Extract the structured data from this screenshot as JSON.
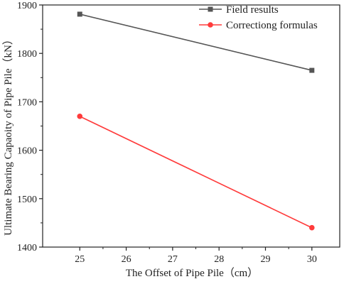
{
  "chart_data": {
    "type": "line",
    "title": "",
    "xlabel": "The Offset of Pipe Pile（cm）",
    "ylabel": "Ultimate Bearing Capaoity of Pipe Pile（kN）",
    "xlim": [
      24.2,
      30.6
    ],
    "ylim": [
      1400,
      1900
    ],
    "xticks": [
      25,
      26,
      27,
      28,
      29,
      30
    ],
    "yticks": [
      1400,
      1500,
      1600,
      1700,
      1800,
      1900
    ],
    "grid": false,
    "legend": "top-right",
    "series": [
      {
        "name": "Field results",
        "color": "#555555",
        "marker": "square",
        "x": [
          25,
          30
        ],
        "y": [
          1881,
          1765
        ]
      },
      {
        "name": "Correctiong formulas",
        "color": "#ff3b3b",
        "marker": "circle",
        "x": [
          25,
          30
        ],
        "y": [
          1670,
          1440
        ]
      }
    ]
  }
}
